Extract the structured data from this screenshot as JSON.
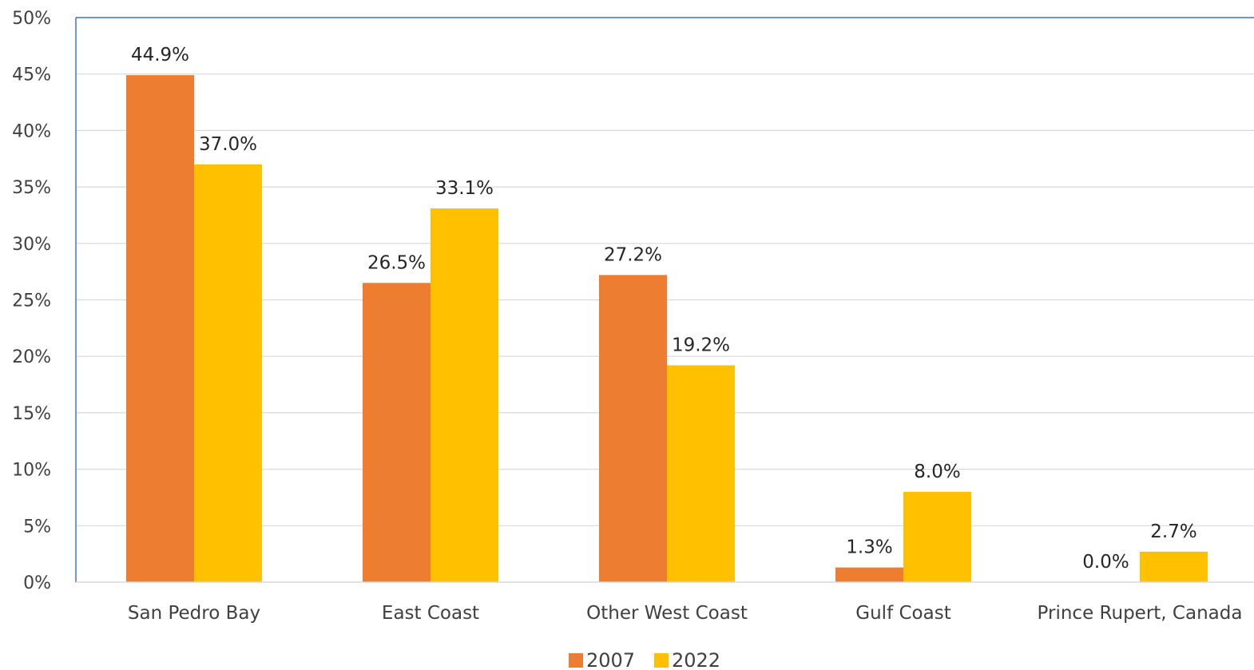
{
  "chart_data": {
    "type": "bar",
    "categories": [
      "San Pedro Bay",
      "East Coast",
      "Other West Coast",
      "Gulf Coast",
      "Prince Rupert, Canada"
    ],
    "series": [
      {
        "name": "2007",
        "color": "#ED7D31",
        "values": [
          44.9,
          26.5,
          27.2,
          1.3,
          0.0
        ],
        "labels": [
          "44.9%",
          "26.5%",
          "27.2%",
          "1.3%",
          "0.0%"
        ]
      },
      {
        "name": "2022",
        "color": "#FFC000",
        "values": [
          37.0,
          33.1,
          19.2,
          8.0,
          2.7
        ],
        "labels": [
          "37.0%",
          "33.1%",
          "19.2%",
          "8.0%",
          "2.7%"
        ]
      }
    ],
    "ylim": [
      0,
      50
    ],
    "yticks": [
      0,
      5,
      10,
      15,
      20,
      25,
      30,
      35,
      40,
      45,
      50
    ],
    "ytick_labels": [
      "0%",
      "5%",
      "10%",
      "15%",
      "20%",
      "25%",
      "30%",
      "35%",
      "40%",
      "45%",
      "50%"
    ],
    "grid": true,
    "legend_position": "bottom",
    "title": "",
    "xlabel": "",
    "ylabel": ""
  }
}
